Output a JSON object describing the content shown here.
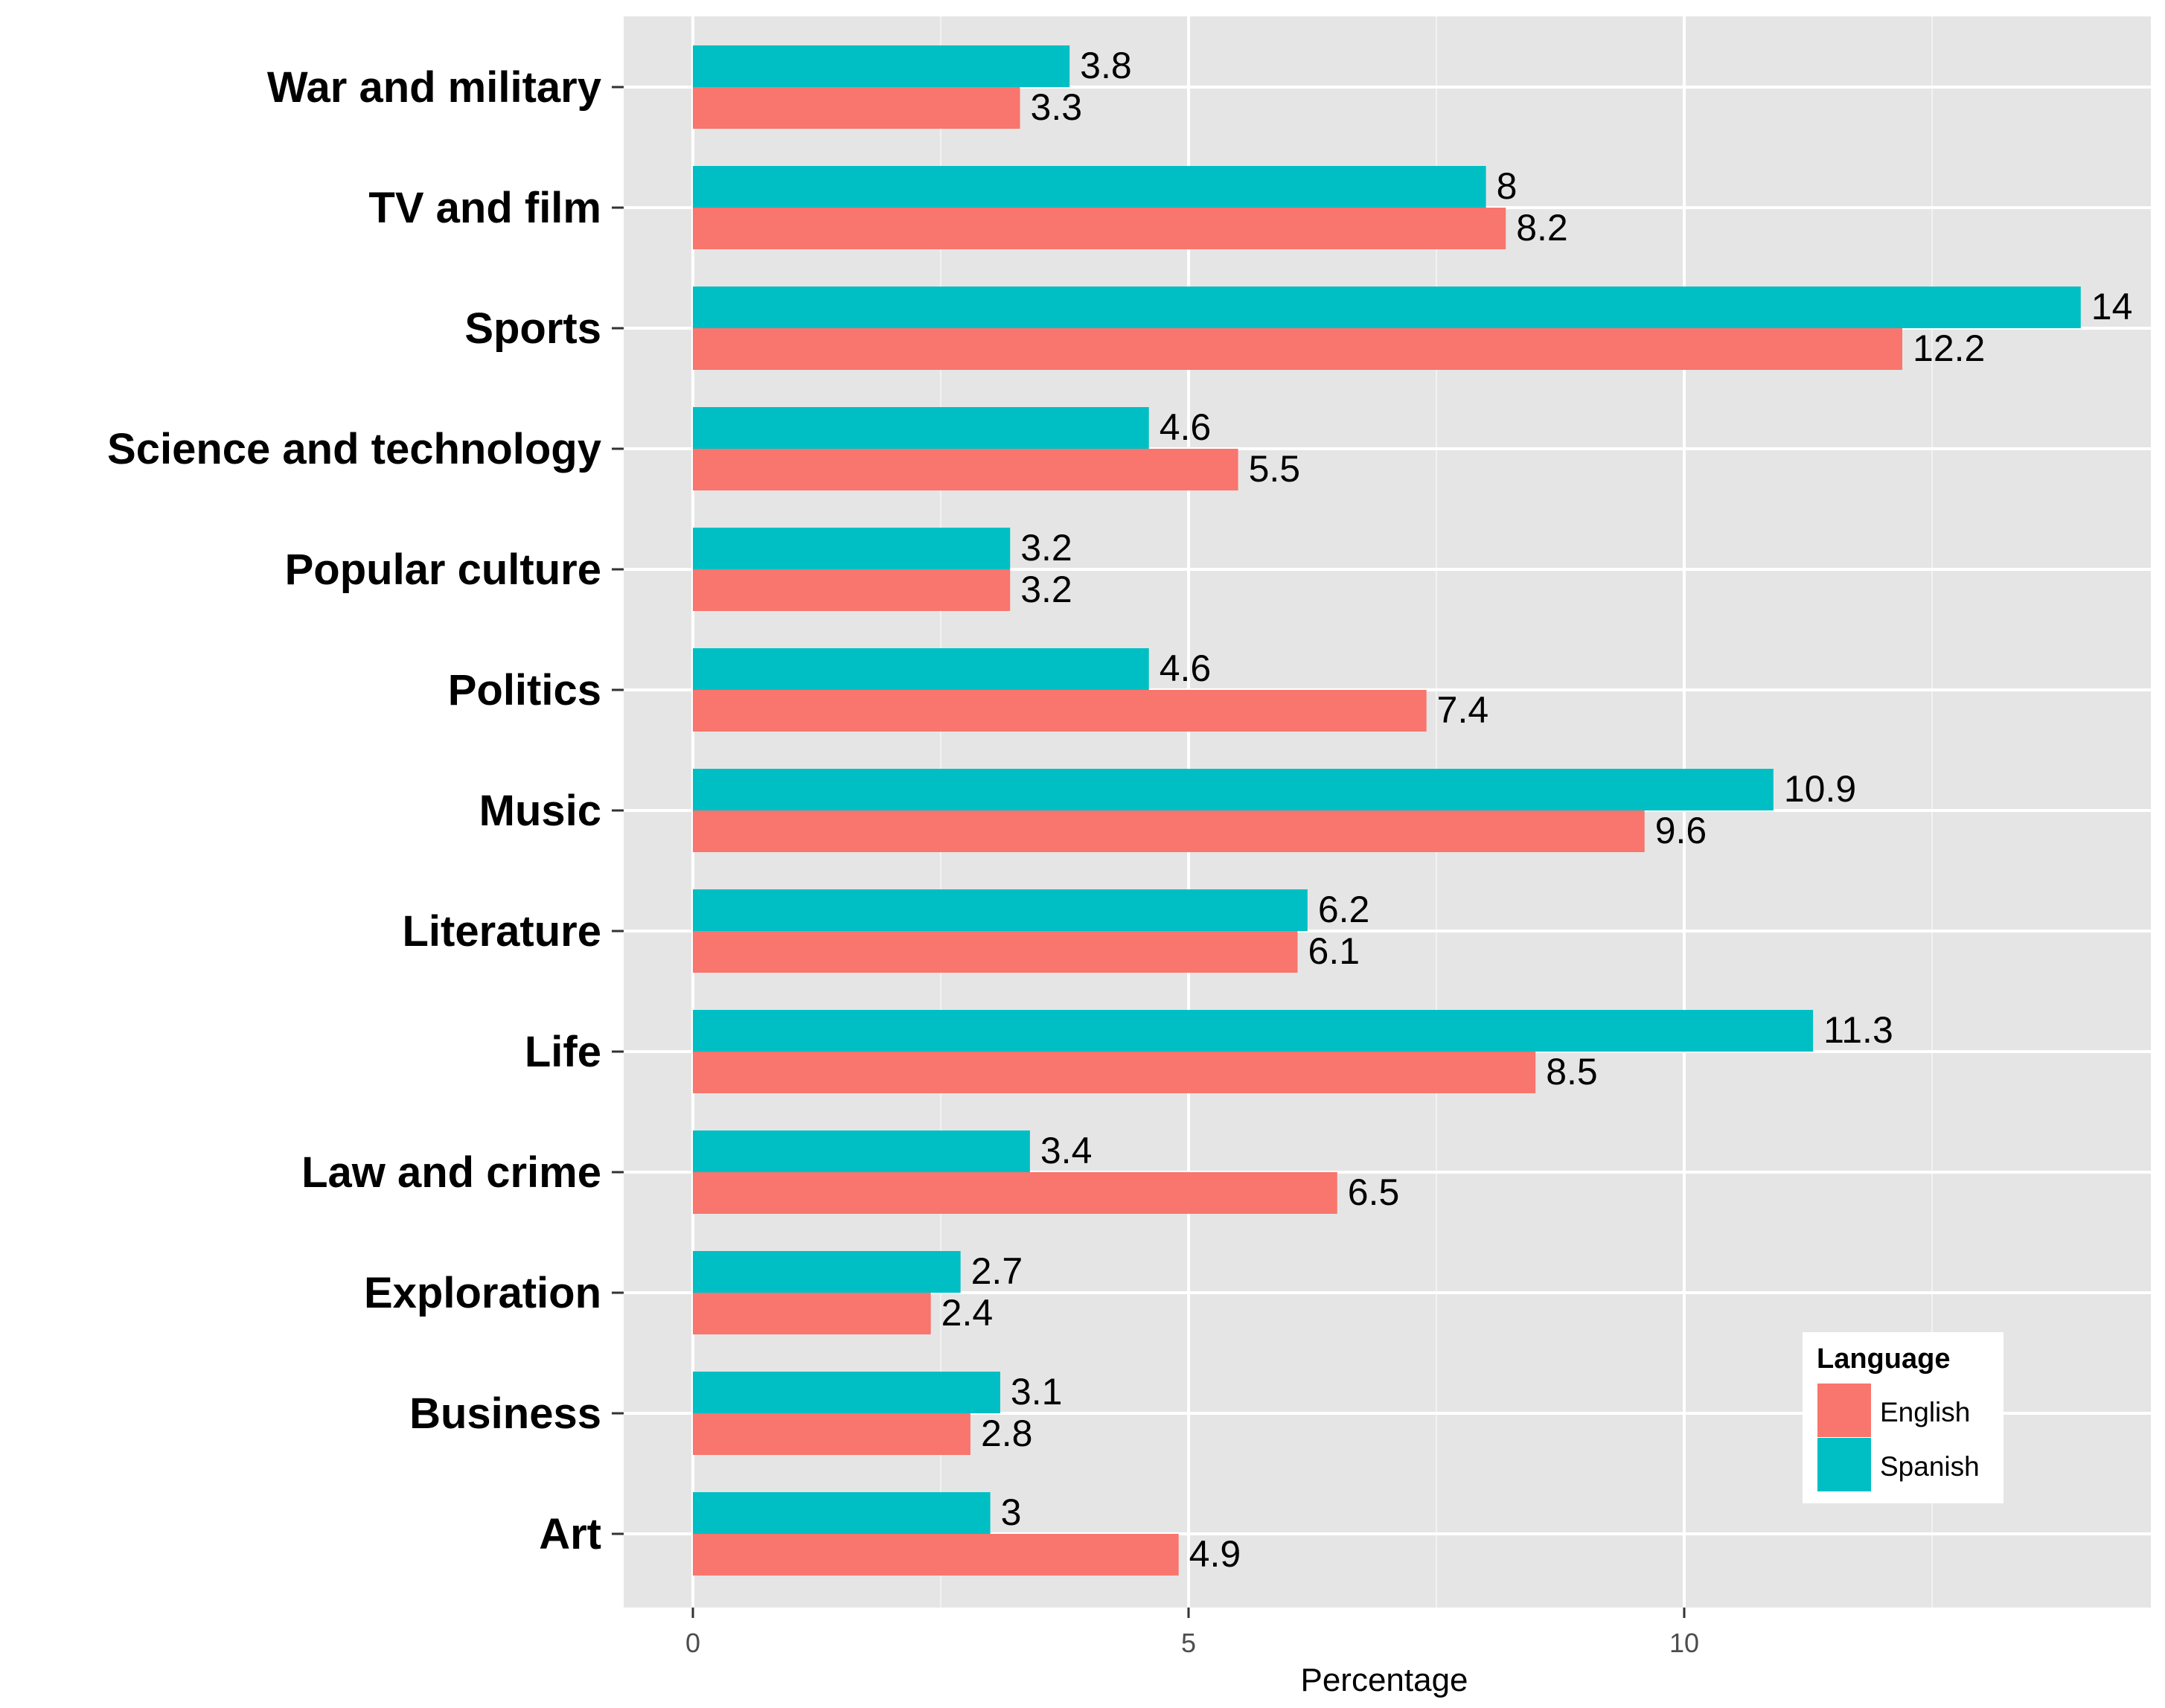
{
  "chart_data": {
    "type": "bar",
    "orientation": "horizontal",
    "categories": [
      "War and military",
      "TV and film",
      "Sports",
      "Science and technology",
      "Popular culture",
      "Politics",
      "Music",
      "Literature",
      "Life",
      "Law and crime",
      "Exploration",
      "Business",
      "Art"
    ],
    "series": [
      {
        "name": "English",
        "color": "#f8766d",
        "values": [
          3.3,
          8.2,
          12.2,
          5.5,
          3.2,
          7.4,
          9.6,
          6.1,
          8.5,
          6.5,
          2.4,
          2.8,
          4.9
        ]
      },
      {
        "name": "Spanish",
        "color": "#00bfc4",
        "values": [
          3.8,
          8,
          14,
          4.6,
          3.2,
          4.6,
          10.9,
          6.2,
          11.3,
          3.4,
          2.7,
          3.1,
          3
        ]
      }
    ],
    "value_labels": {
      "English": [
        "3.3",
        "8.2",
        "12.2",
        "5.5",
        "3.2",
        "7.4",
        "9.6",
        "6.1",
        "8.5",
        "6.5",
        "2.4",
        "2.8",
        "4.9"
      ],
      "Spanish": [
        "3.8",
        "8",
        "14",
        "4.6",
        "3.2",
        "4.6",
        "10.9",
        "6.2",
        "11.3",
        "3.4",
        "2.7",
        "3.1",
        "3"
      ]
    },
    "xlabel": "Percentage",
    "ylabel": "",
    "xlim": [
      -0.7,
      14.7
    ],
    "x_ticks": [
      0,
      5,
      10
    ],
    "x_tick_labels": [
      "0",
      "5",
      "10"
    ],
    "grid": true,
    "panel_background": "#e5e5e5",
    "legend": {
      "title": "Language",
      "placement": "bottom-right inside",
      "entries": [
        "English",
        "Spanish"
      ]
    }
  }
}
